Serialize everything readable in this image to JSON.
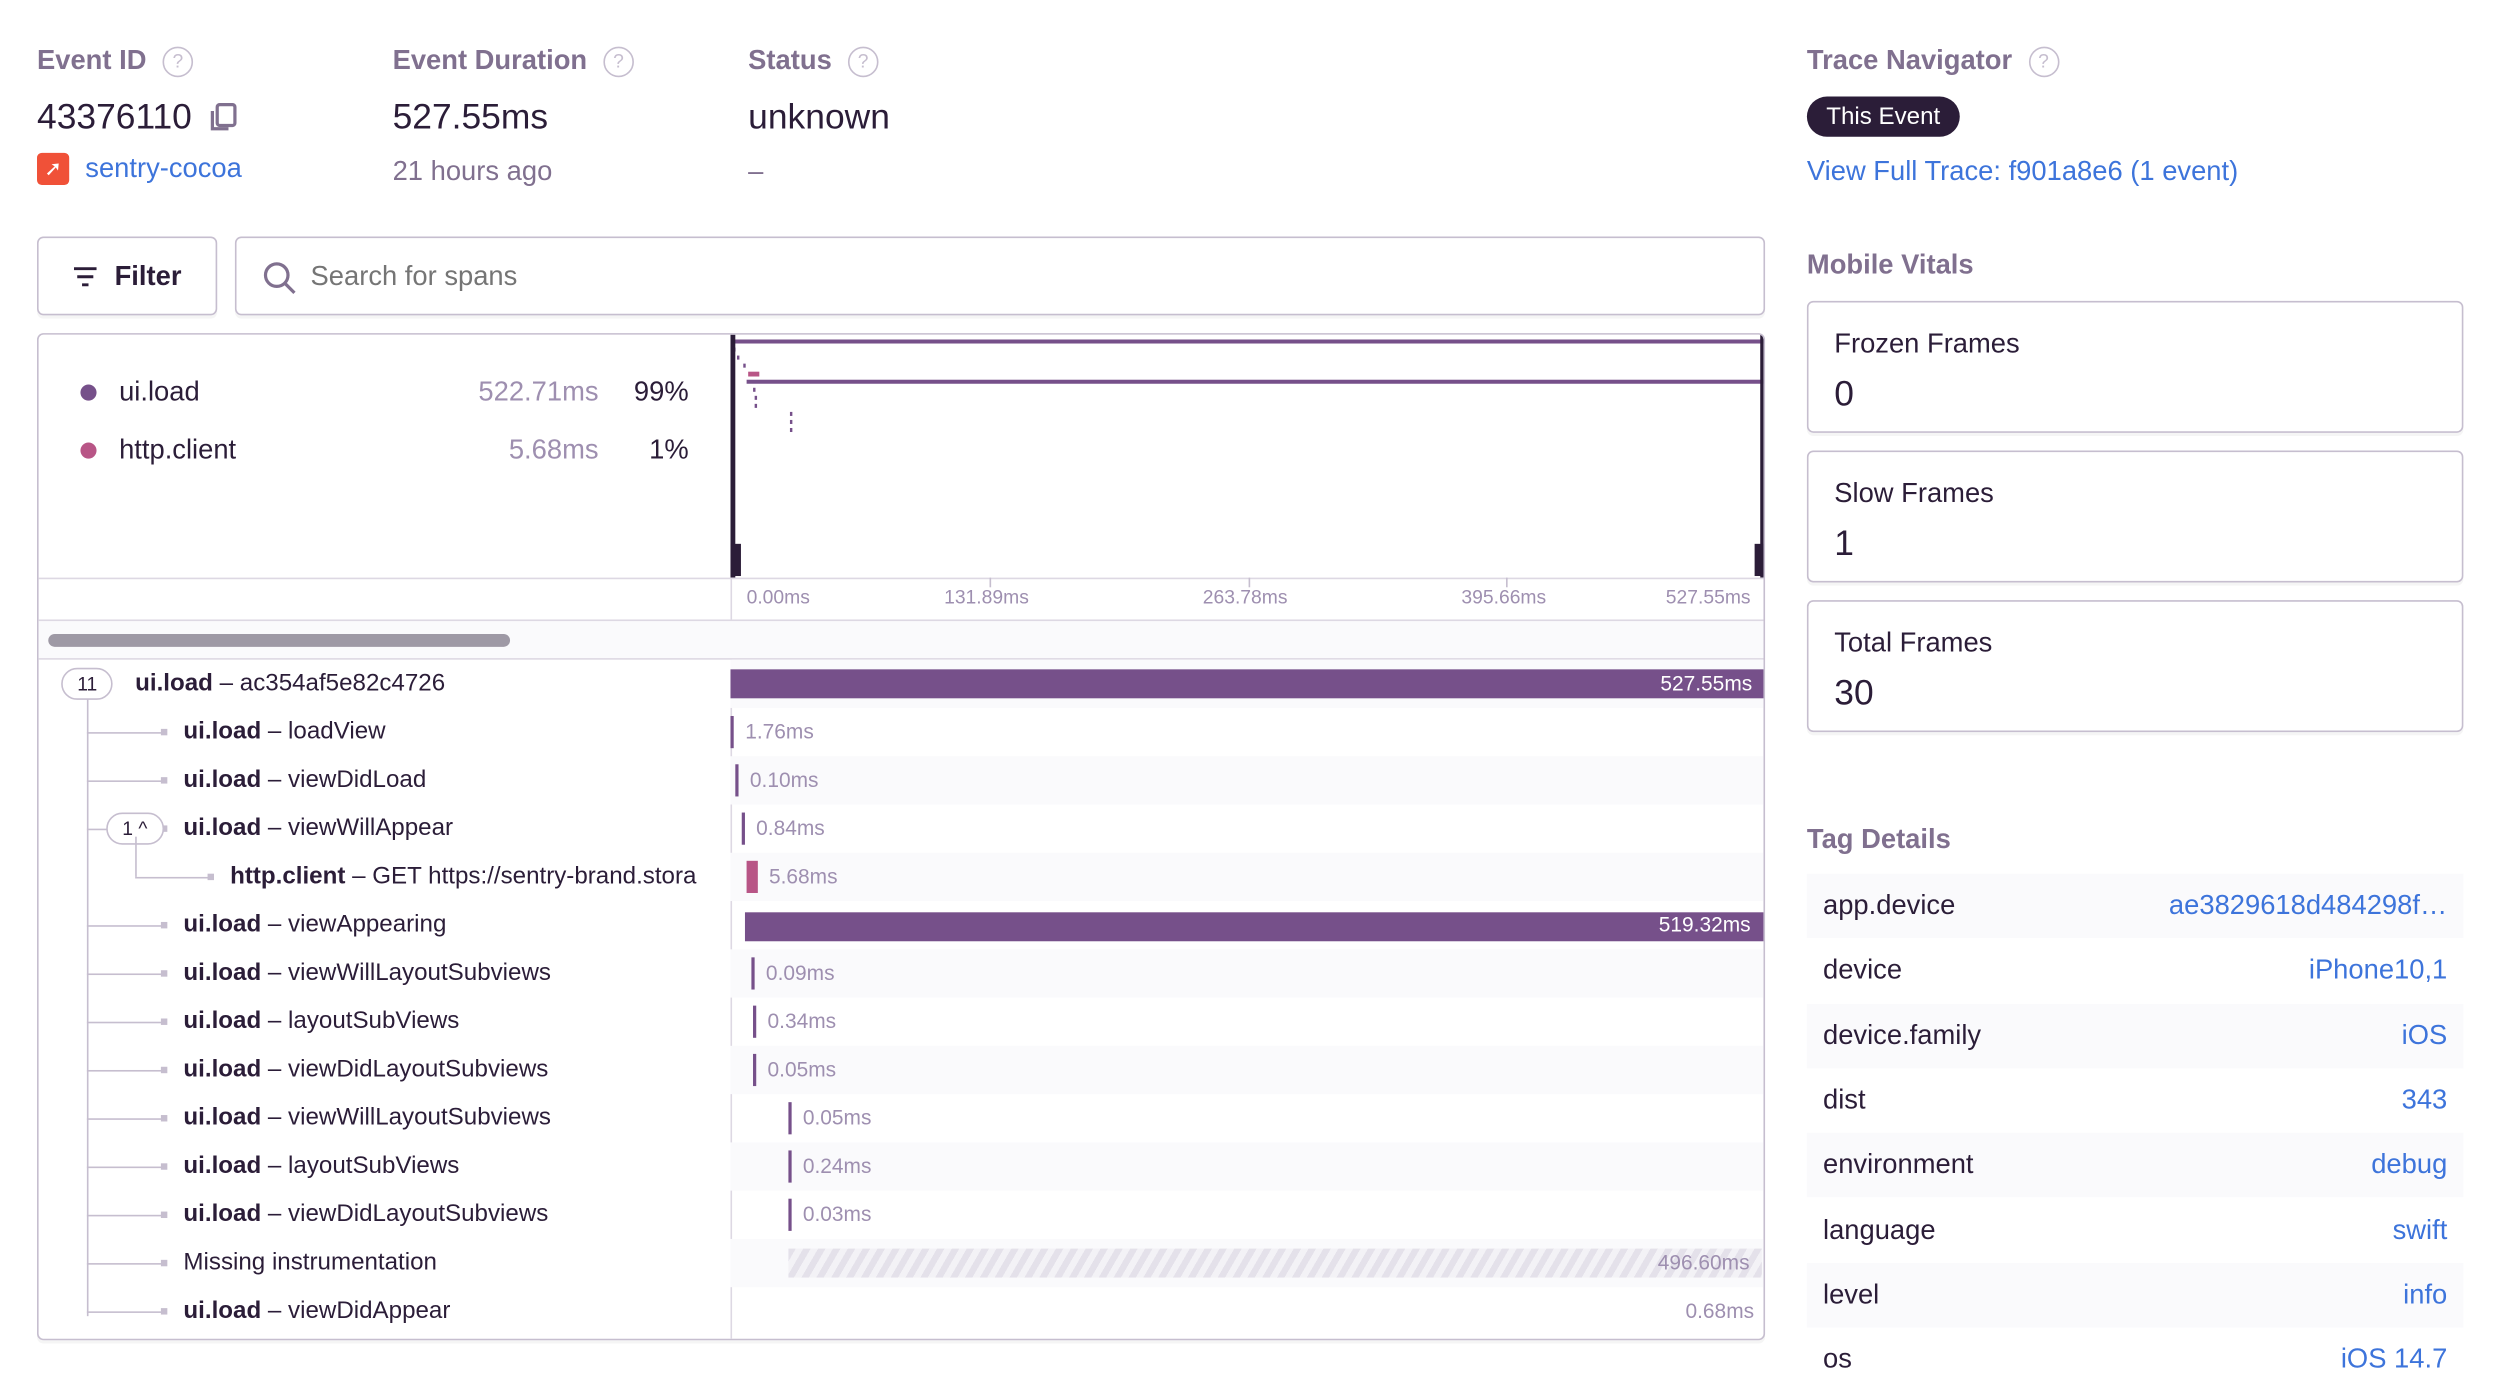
{
  "header": {
    "event_id": {
      "label": "Event ID",
      "value": "43376110",
      "project": "sentry-cocoa"
    },
    "duration": {
      "label": "Event Duration",
      "value": "527.55ms",
      "relative_time": "21 hours ago"
    },
    "status": {
      "label": "Status",
      "value": "unknown",
      "sub": "–"
    }
  },
  "toolbar": {
    "filter_label": "Filter",
    "search_placeholder": "Search for spans"
  },
  "ops_breakdown": [
    {
      "op": "ui.load",
      "duration": "522.71ms",
      "percent": "99%",
      "color": "#76508a"
    },
    {
      "op": "http.client",
      "duration": "5.68ms",
      "percent": "1%",
      "color": "#b85586"
    }
  ],
  "axis_ticks": [
    "0.00ms",
    "131.89ms",
    "263.78ms",
    "395.66ms",
    "527.55ms"
  ],
  "total_ms": 527.55,
  "spans": [
    {
      "op": "ui.load",
      "desc": "ac354af5e82c4726",
      "depth": 0,
      "badge": "11",
      "start_ms": 0,
      "duration_ms": 527.55,
      "label": "527.55ms",
      "kind": "ui"
    },
    {
      "op": "ui.load",
      "desc": "loadView",
      "depth": 1,
      "start_ms": 0,
      "duration_ms": 1.76,
      "label": "1.76ms",
      "kind": "ui"
    },
    {
      "op": "ui.load",
      "desc": "viewDidLoad",
      "depth": 1,
      "start_ms": 2.5,
      "duration_ms": 0.1,
      "label": "0.10ms",
      "kind": "ui"
    },
    {
      "op": "ui.load",
      "desc": "viewWillAppear",
      "depth": 1,
      "badge": "1 ^",
      "start_ms": 5.7,
      "duration_ms": 0.84,
      "label": "0.84ms",
      "kind": "ui"
    },
    {
      "op": "http.client",
      "desc": "GET https://sentry-brand.stora",
      "depth": 2,
      "start_ms": 8.2,
      "duration_ms": 5.68,
      "label": "5.68ms",
      "kind": "http"
    },
    {
      "op": "ui.load",
      "desc": "viewAppearing",
      "depth": 1,
      "start_ms": 7.4,
      "duration_ms": 519.32,
      "label": "519.32ms",
      "kind": "ui"
    },
    {
      "op": "ui.load",
      "desc": "viewWillLayoutSubviews",
      "depth": 1,
      "start_ms": 10.7,
      "duration_ms": 0.09,
      "label": "0.09ms",
      "kind": "ui"
    },
    {
      "op": "ui.load",
      "desc": "layoutSubViews",
      "depth": 1,
      "start_ms": 11.5,
      "duration_ms": 0.34,
      "label": "0.34ms",
      "kind": "ui"
    },
    {
      "op": "ui.load",
      "desc": "viewDidLayoutSubviews",
      "depth": 1,
      "start_ms": 11.5,
      "duration_ms": 0.05,
      "label": "0.05ms",
      "kind": "ui"
    },
    {
      "op": "ui.load",
      "desc": "viewWillLayoutSubviews",
      "depth": 1,
      "start_ms": 29.5,
      "duration_ms": 0.05,
      "label": "0.05ms",
      "kind": "ui"
    },
    {
      "op": "ui.load",
      "desc": "layoutSubViews",
      "depth": 1,
      "start_ms": 29.5,
      "duration_ms": 0.24,
      "label": "0.24ms",
      "kind": "ui"
    },
    {
      "op": "ui.load",
      "desc": "viewDidLayoutSubviews",
      "depth": 1,
      "start_ms": 29.5,
      "duration_ms": 0.03,
      "label": "0.03ms",
      "kind": "ui"
    },
    {
      "op": "",
      "desc": "Missing instrumentation",
      "depth": 1,
      "start_ms": 29.6,
      "duration_ms": 496.6,
      "label": "496.60ms",
      "kind": "gap"
    },
    {
      "op": "ui.load",
      "desc": "viewDidAppear",
      "depth": 1,
      "start_ms": 526.87,
      "duration_ms": 0.68,
      "label": "0.68ms",
      "kind": "ui"
    }
  ],
  "trace_navigator": {
    "label": "Trace Navigator",
    "current": "This Event",
    "link": "View Full Trace: f901a8e6 (1 event)"
  },
  "mobile_vitals": {
    "label": "Mobile Vitals",
    "items": [
      {
        "name": "Frozen Frames",
        "value": "0"
      },
      {
        "name": "Slow Frames",
        "value": "1"
      },
      {
        "name": "Total Frames",
        "value": "30"
      }
    ]
  },
  "tag_details": {
    "label": "Tag Details",
    "items": [
      {
        "key": "app.device",
        "value": "ae3829618d484298f…"
      },
      {
        "key": "device",
        "value": "iPhone10,1"
      },
      {
        "key": "device.family",
        "value": "iOS"
      },
      {
        "key": "dist",
        "value": "343"
      },
      {
        "key": "environment",
        "value": "debug"
      },
      {
        "key": "language",
        "value": "swift"
      },
      {
        "key": "level",
        "value": "info"
      },
      {
        "key": "os",
        "value": "iOS 14.7"
      }
    ]
  },
  "colors": {
    "ui": "#76508a",
    "http": "#b85586",
    "link": "#3d74db",
    "text": "#2b1d38",
    "muted": "#80708f"
  }
}
